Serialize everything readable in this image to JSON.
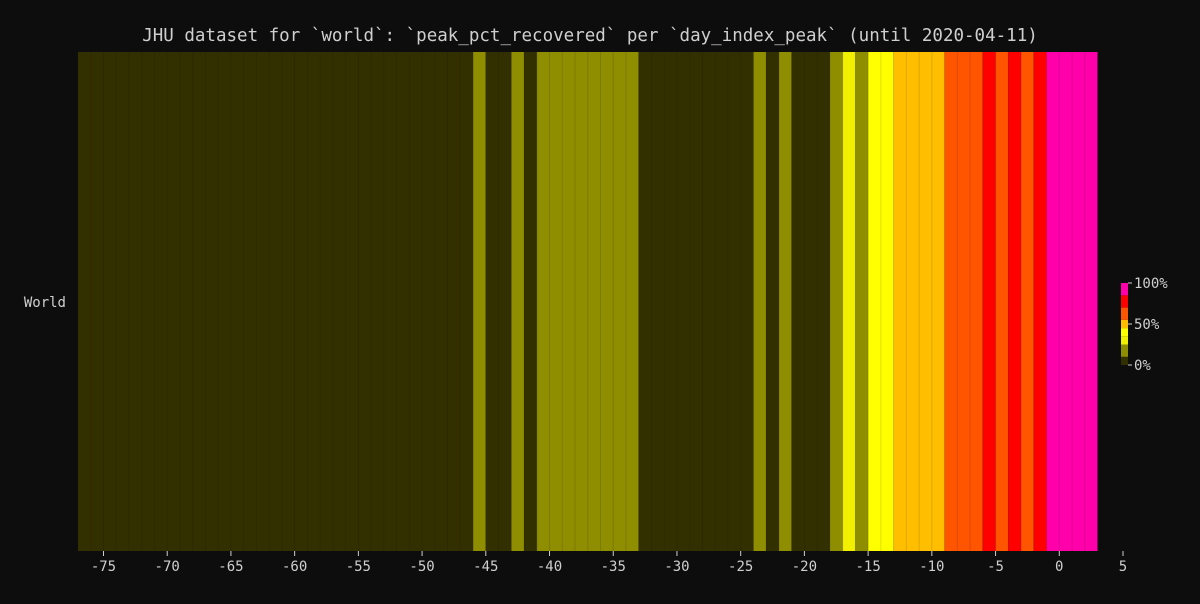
{
  "chart_data": {
    "type": "heatmap",
    "title": "JHU dataset for `world`: `peak_pct_recovered` per `day_index_peak` (until 2020-04-11)",
    "xlabel": "",
    "ylabel": "",
    "rows": [
      "World"
    ],
    "xlim": [
      -77,
      5
    ],
    "x_ticks": [
      "-75",
      "-70",
      "-65",
      "-60",
      "-55",
      "-50",
      "-45",
      "-40",
      "-35",
      "-30",
      "-25",
      "-20",
      "-15",
      "-10",
      "-5",
      "0",
      "5"
    ],
    "x_tick_values": [
      -75,
      -70,
      -65,
      -60,
      -55,
      -50,
      -45,
      -40,
      -35,
      -30,
      -25,
      -20,
      -15,
      -10,
      -5,
      0,
      5
    ],
    "color_levels": [
      {
        "range_pct": [
          0,
          10
        ],
        "color": "#333000"
      },
      {
        "range_pct": [
          10,
          25
        ],
        "color": "#8f8d00"
      },
      {
        "range_pct": [
          25,
          35
        ],
        "color": "#f2f000"
      },
      {
        "range_pct": [
          35,
          45
        ],
        "color": "#ffff00"
      },
      {
        "range_pct": [
          45,
          55
        ],
        "color": "#ffbf00"
      },
      {
        "range_pct": [
          55,
          70
        ],
        "color": "#ff5500"
      },
      {
        "range_pct": [
          70,
          85
        ],
        "color": "#ff0000"
      },
      {
        "range_pct": [
          85,
          100
        ],
        "color": "#ff00aa"
      }
    ],
    "cells": [
      {
        "x0": -77,
        "x1": -46,
        "value": 5
      },
      {
        "x0": -46,
        "x1": -45,
        "value": 20
      },
      {
        "x0": -45,
        "x1": -43,
        "value": 5
      },
      {
        "x0": -43,
        "x1": -42,
        "value": 20
      },
      {
        "x0": -42,
        "x1": -41,
        "value": 5
      },
      {
        "x0": -41,
        "x1": -33,
        "value": 20
      },
      {
        "x0": -33,
        "x1": -24,
        "value": 5
      },
      {
        "x0": -24,
        "x1": -23,
        "value": 20
      },
      {
        "x0": -23,
        "x1": -22,
        "value": 5
      },
      {
        "x0": -22,
        "x1": -21,
        "value": 20
      },
      {
        "x0": -21,
        "x1": -18,
        "value": 5
      },
      {
        "x0": -18,
        "x1": -17,
        "value": 20
      },
      {
        "x0": -17,
        "x1": -16,
        "value": 30
      },
      {
        "x0": -16,
        "x1": -15,
        "value": 20
      },
      {
        "x0": -15,
        "x1": -13,
        "value": 40
      },
      {
        "x0": -13,
        "x1": -9,
        "value": 50
      },
      {
        "x0": -9,
        "x1": -6,
        "value": 62
      },
      {
        "x0": -6,
        "x1": -5,
        "value": 78
      },
      {
        "x0": -5,
        "x1": -4,
        "value": 62
      },
      {
        "x0": -4,
        "x1": -3,
        "value": 78
      },
      {
        "x0": -3,
        "x1": -2,
        "value": 62
      },
      {
        "x0": -2,
        "x1": -1,
        "value": 78
      },
      {
        "x0": -1,
        "x1": 3,
        "value": 95
      }
    ],
    "colorbar": {
      "ticks": [
        "100%",
        "50%",
        "0%"
      ],
      "tick_values": [
        100,
        50,
        0
      ],
      "range": [
        0,
        100
      ]
    }
  }
}
